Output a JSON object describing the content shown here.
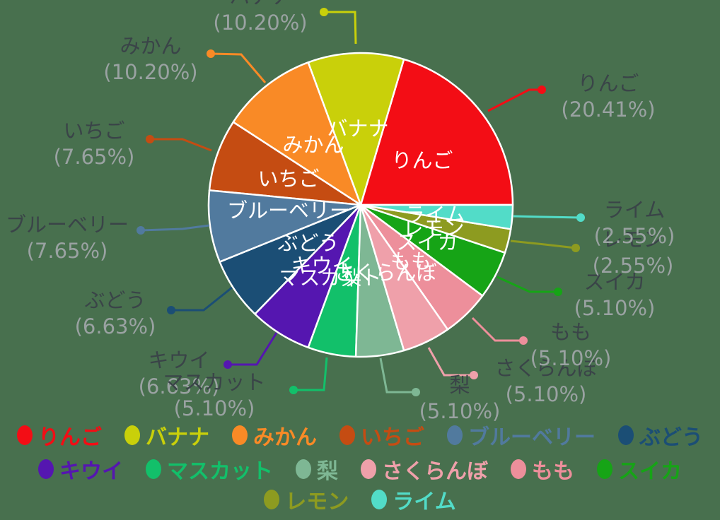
{
  "background_color": "#48704e",
  "chart_data": {
    "type": "pie",
    "title": "",
    "labels": [
      "りんご",
      "バナナ",
      "みかん",
      "いちご",
      "ブルーベリー",
      "ぶどう",
      "キウイ",
      "マスカット",
      "梨",
      "さくらんぼ",
      "もも",
      "スイカ",
      "レモン",
      "ライム"
    ],
    "values_percent": [
      20.41,
      10.2,
      10.2,
      7.65,
      7.65,
      6.63,
      6.63,
      5.1,
      5.1,
      5.1,
      5.1,
      5.1,
      2.55,
      2.55
    ],
    "percent_labels": [
      "(20.41%)",
      "(10.20%)",
      "(10.20%)",
      "(7.65%)",
      "(7.65%)",
      "(6.63%)",
      "(6.63%)",
      "(5.10%)",
      "(5.10%)",
      "(5.10%)",
      "(5.10%)",
      "(5.10%)",
      "(2.55%)",
      "(2.55%)"
    ],
    "colors": [
      "#f30d15",
      "#c9d00a",
      "#f98a26",
      "#c54c12",
      "#517a9e",
      "#1b4e75",
      "#5516b0",
      "#12c06a",
      "#7eb794",
      "#efa0aa",
      "#ed8f9b",
      "#16a416",
      "#8d9b20",
      "#52dcc8"
    ],
    "start_angle_deg": 0,
    "direction": "counterclockwise",
    "slice_label_color": "#ffffff",
    "outer_name_color": "#3a4448",
    "outer_pct_color": "#9aa2a2",
    "wedge_border_color": "#ffffff",
    "legend_rows": [
      [
        0,
        1,
        2,
        3,
        4,
        5
      ],
      [
        6,
        7,
        8,
        9,
        10,
        11
      ],
      [
        12,
        13
      ]
    ]
  }
}
